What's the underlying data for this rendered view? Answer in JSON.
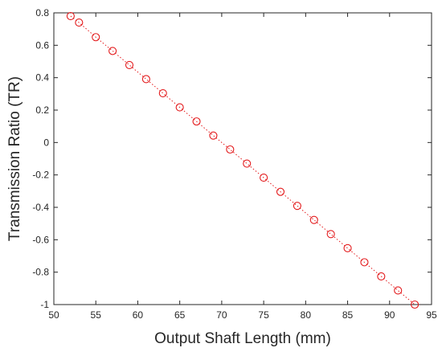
{
  "chart_data": {
    "type": "scatter",
    "title": "",
    "xlabel": "Output Shaft Length (mm)",
    "ylabel": "Transmission Ratio (TR)",
    "xlim": [
      50,
      95
    ],
    "ylim": [
      -1,
      0.8
    ],
    "xticks": [
      50,
      55,
      60,
      65,
      70,
      75,
      80,
      85,
      90,
      95
    ],
    "xtick_labels": [
      "50",
      "55",
      "60",
      "65",
      "70",
      "75",
      "80",
      "85",
      "90",
      "95"
    ],
    "yticks": [
      0.8,
      0.6,
      0.4,
      0.2,
      0,
      -0.2,
      -0.4,
      -0.6,
      -0.8,
      -1
    ],
    "ytick_labels": [
      "0.8",
      "0.6",
      "0.4",
      "0.2",
      "0",
      "-0.2",
      "-0.4",
      "-0.6",
      "-0.8",
      "-1"
    ],
    "grid": false,
    "legend": "none",
    "series": [
      {
        "color": "#e31a1c",
        "marker": "circle-open",
        "line_style": "dotted",
        "x": [
          52,
          53,
          55,
          57,
          59,
          61,
          63,
          65,
          67,
          69,
          71,
          73,
          75,
          77,
          79,
          81,
          83,
          85,
          87,
          89,
          91,
          93
        ],
        "y": [
          0.78,
          0.74,
          0.65,
          0.565,
          0.478,
          0.391,
          0.304,
          0.217,
          0.13,
          0.043,
          -0.043,
          -0.13,
          -0.217,
          -0.304,
          -0.391,
          -0.478,
          -0.565,
          -0.652,
          -0.739,
          -0.826,
          -0.913,
          -1.0
        ]
      }
    ]
  }
}
